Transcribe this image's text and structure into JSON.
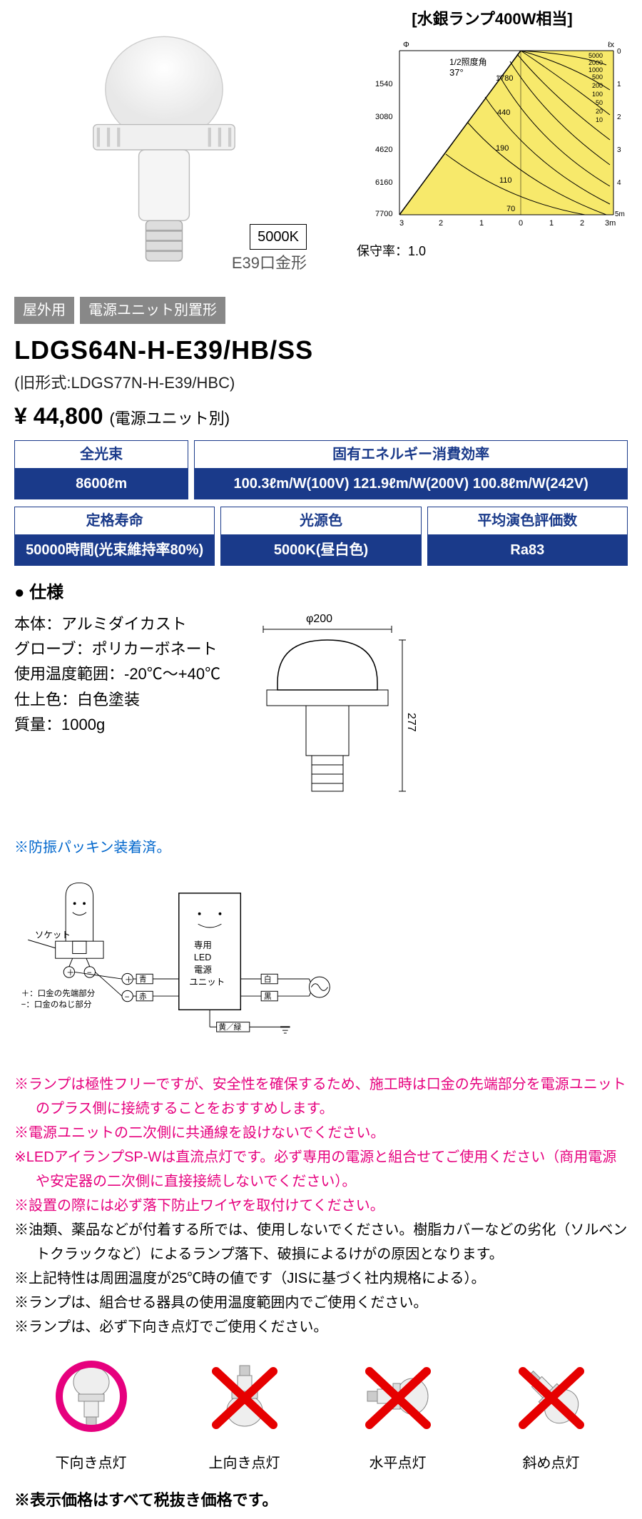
{
  "header": {
    "k_label": "5000K",
    "e39": "E39口金形",
    "badges": [
      "屋外用",
      "電源ユニット別置形"
    ],
    "model": "LDGS64N-H-E39/HB/SS",
    "old_model": "(旧形式:LDGS77N-H-E39/HBC)",
    "price": "¥ 44,800",
    "price_note": "(電源ユニット別)"
  },
  "chart": {
    "title": "[水銀ランプ400W相当]",
    "half_angle_label": "1/2照度角",
    "half_angle": "37°",
    "phi_label": "Φ",
    "lx_label": "ℓx",
    "y_ticks": [
      "1540",
      "3080",
      "4620",
      "6160",
      "7700"
    ],
    "y_heights": [
      "0",
      "1",
      "2",
      "3",
      "4",
      "5m"
    ],
    "x_ticks_left": [
      "3",
      "2",
      "1",
      "0"
    ],
    "x_ticks_right": [
      "1",
      "2",
      "3m"
    ],
    "lx_ticks": [
      "5000",
      "2000",
      "1000",
      "500",
      "200",
      "100",
      "50",
      "20",
      "10"
    ],
    "contour_labels": [
      "1780",
      "440",
      "190",
      "110",
      "70"
    ],
    "bg_color": "#f7e96b",
    "line_color": "#000000",
    "ratio": "保守率：1.0"
  },
  "specs": {
    "row1": [
      {
        "head": "全光束",
        "val": "8600ℓm",
        "flex": 1
      },
      {
        "head": "固有エネルギー消費効率",
        "val": "100.3ℓm/W(100V) 121.9ℓm/W(200V) 100.8ℓm/W(242V)",
        "flex": 2.5
      }
    ],
    "row2": [
      {
        "head": "定格寿命",
        "val": "50000時間(光束維持率80%)",
        "flex": 1
      },
      {
        "head": "光源色",
        "val": "5000K(昼白色)",
        "flex": 1
      },
      {
        "head": "平均演色評価数",
        "val": "Ra83",
        "flex": 1
      }
    ]
  },
  "details": {
    "heading": "● 仕様",
    "lines": [
      "本体：アルミダイカスト",
      "グローブ：ポリカーボネート",
      "使用温度範囲：-20℃～+40℃",
      "仕上色：白色塗装",
      "質量：1000g"
    ],
    "blue_note": "※防振パッキン装着済。",
    "dim_width": "φ200",
    "dim_height": "277"
  },
  "wiring": {
    "socket_label": "ソケット",
    "plus_label": "＋：口金の先端部分",
    "minus_label": "−：口金のねじ部分",
    "unit_label": "専用\nLED\n電源\nユニット",
    "wires": {
      "blue": "青",
      "red": "赤",
      "white": "白",
      "black": "黒",
      "yg": "黄／緑"
    },
    "symbols": {
      "plus": "＋",
      "minus": "−"
    }
  },
  "warnings": {
    "pink": [
      "※ランプは極性フリーですが、安全性を確保するため、施工時は口金の先端部分を電源ユニットのプラス側に接続することをおすすめします。",
      "※電源ユニットの二次側に共通線を設けないでください。",
      "※LEDアイランプSP-Wは直流点灯です。必ず専用の電源と組合せてご使用ください（商用電源や安定器の二次側に直接接続しないでください）。",
      "※設置の際には必ず落下防止ワイヤを取付けてください。"
    ],
    "black": [
      "※油類、薬品などが付着する所では、使用しないでください。樹脂カバーなどの劣化（ソルベントクラックなど）によるランプ落下、破損によるけがの原因となります。",
      "※上記特性は周囲温度が25℃時の値です（JISに基づく社内規格による）。",
      "※ランプは、組合せる器具の使用温度範囲内でご使用ください。",
      "※ランプは、必ず下向き点灯でご使用ください。"
    ]
  },
  "orientation": {
    "items": [
      {
        "label": "下向き点灯",
        "ok": true,
        "angle": 0
      },
      {
        "label": "上向き点灯",
        "ok": false,
        "angle": 180
      },
      {
        "label": "水平点灯",
        "ok": false,
        "angle": 90
      },
      {
        "label": "斜め点灯",
        "ok": false,
        "angle": 135
      }
    ],
    "ok_color": "#e6007e",
    "ng_color": "#e60000"
  },
  "footnote": "※表示価格はすべて税抜き価格です。"
}
